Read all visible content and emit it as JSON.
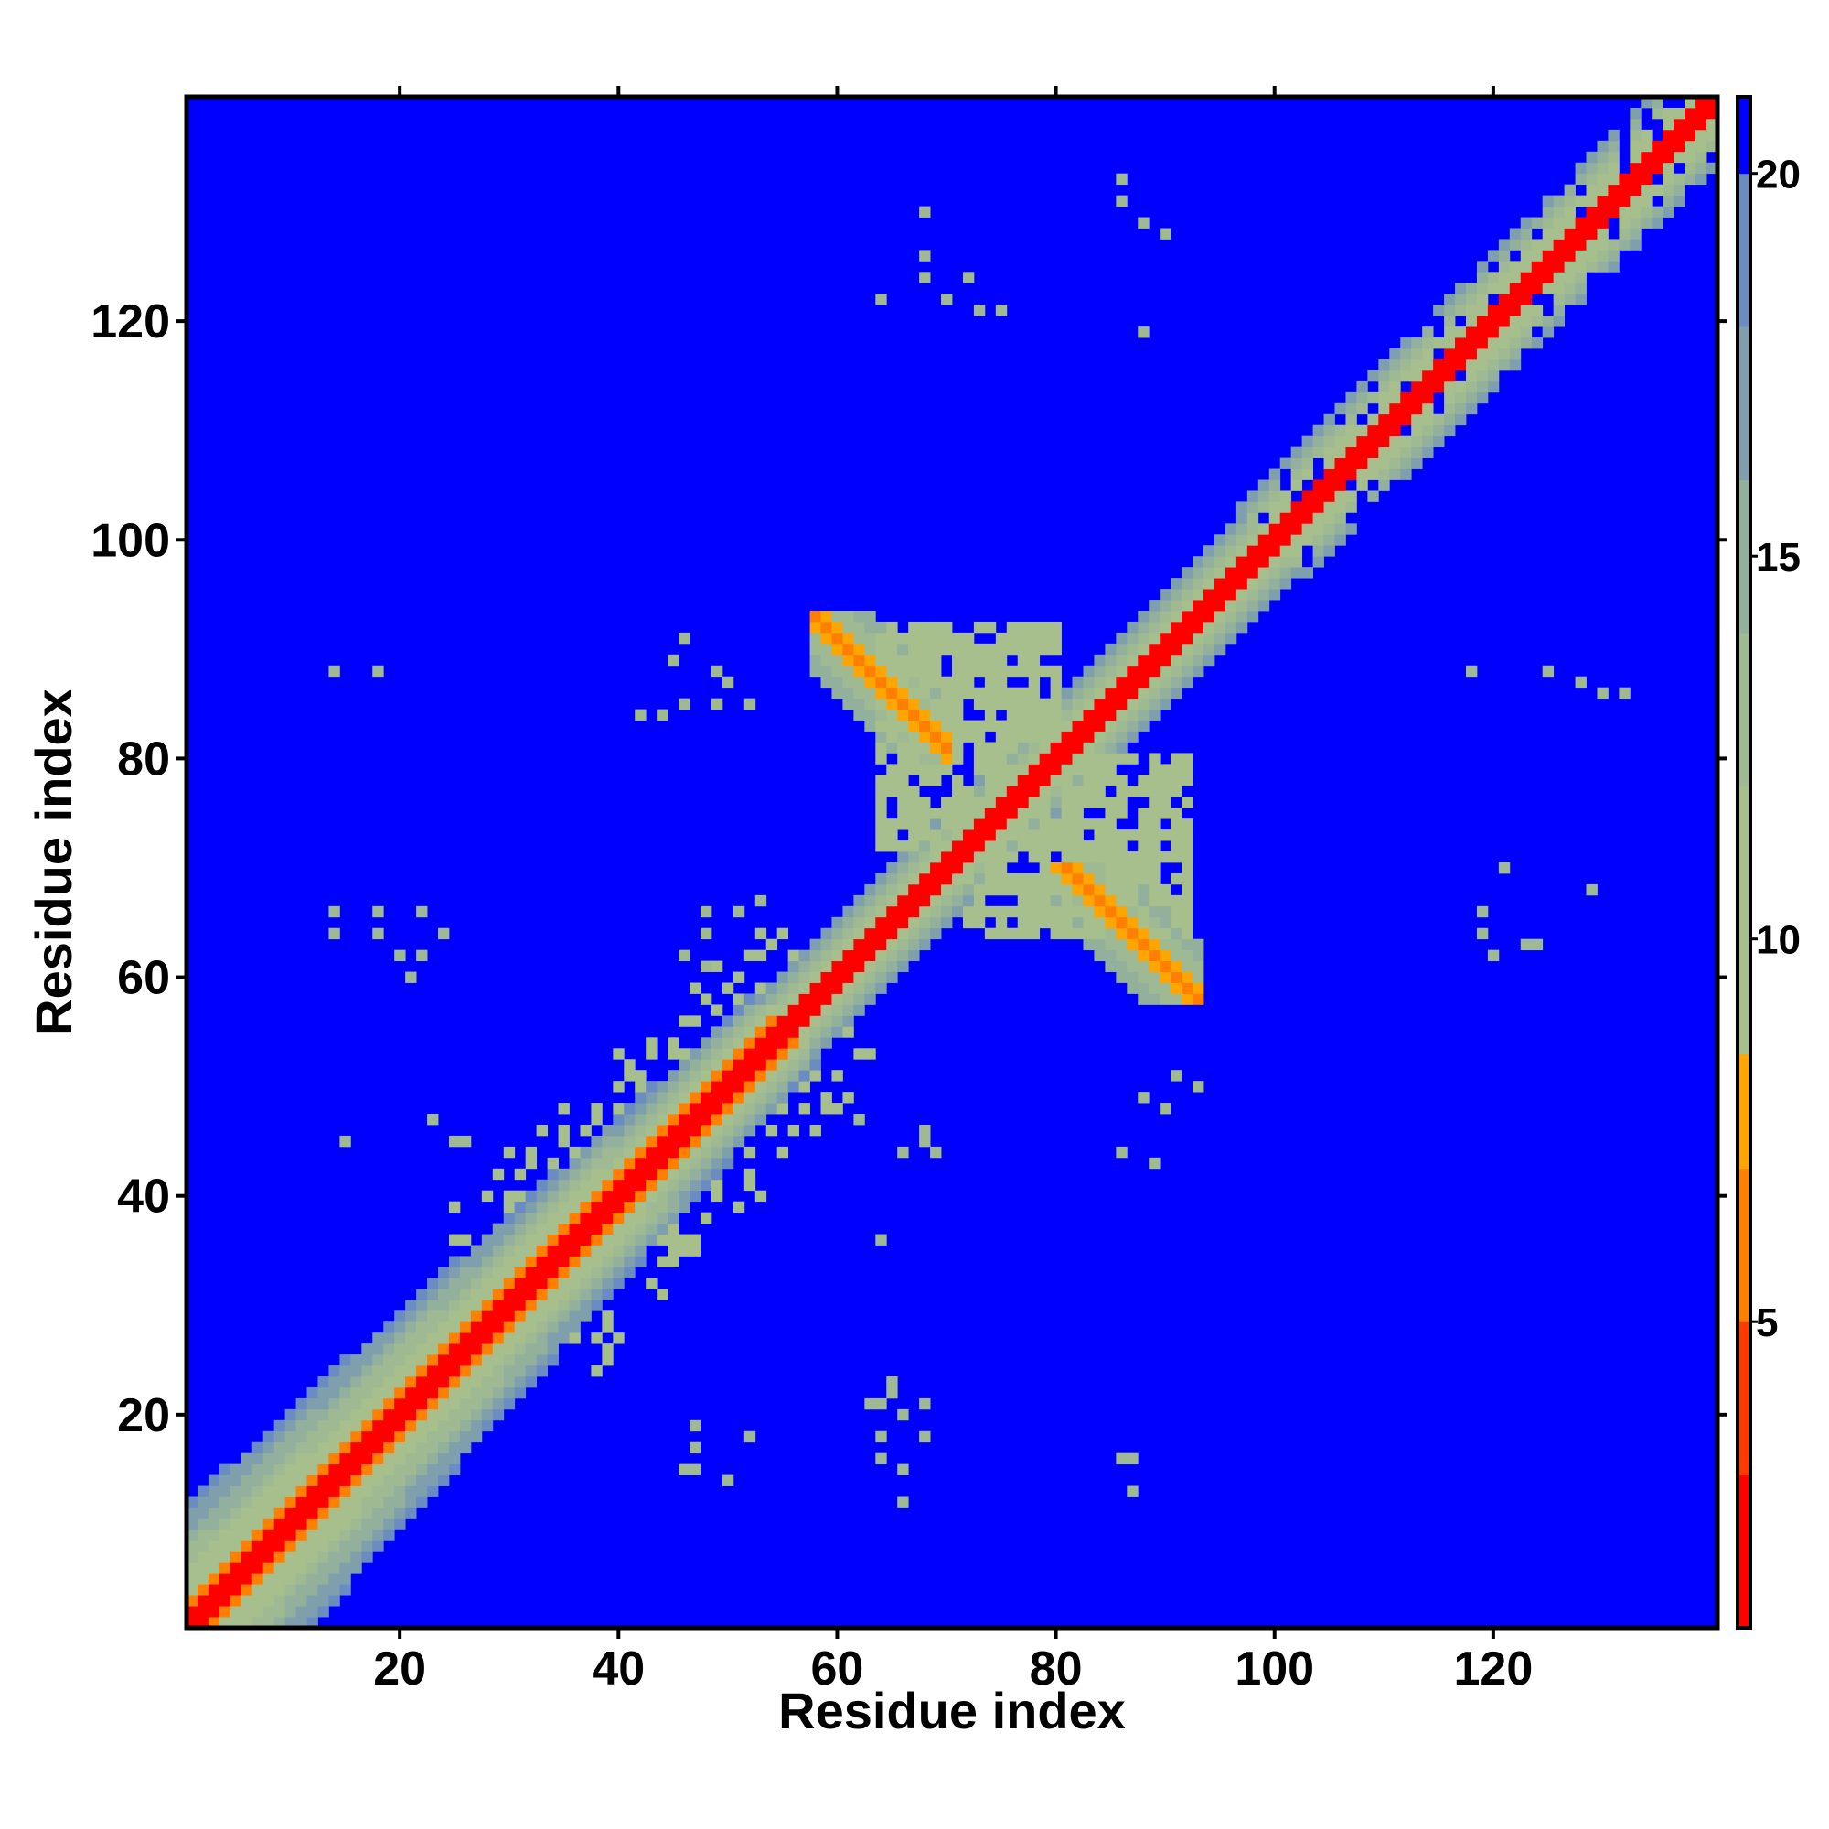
{
  "chart_data": {
    "type": "heatmap",
    "title": "",
    "xlabel": "Residue index",
    "ylabel": "Residue index",
    "xlim": [
      0.5,
      140.5
    ],
    "ylim": [
      0.5,
      140.5
    ],
    "x_ticks": [
      20,
      40,
      60,
      80,
      100,
      120
    ],
    "y_ticks": [
      20,
      40,
      60,
      80,
      100,
      120
    ],
    "x_tick_labels": [
      "20",
      "40",
      "60",
      "80",
      "100",
      "120"
    ],
    "y_tick_labels": [
      "20",
      "40",
      "60",
      "80",
      "100",
      "120"
    ],
    "colorbar": {
      "range": [
        1,
        21
      ],
      "ticks": [
        5,
        10,
        15,
        20
      ],
      "tick_labels": [
        "5",
        "10",
        "15",
        "20"
      ],
      "colors": [
        {
          "max": 3,
          "color": "#ff0000"
        },
        {
          "max": 5,
          "color": "#ff3a00"
        },
        {
          "max": 7,
          "color": "#ff7f00"
        },
        {
          "max": 8.5,
          "color": "#ffa500"
        },
        {
          "max": 12,
          "color": "#a7bf8d"
        },
        {
          "max": 14,
          "color": "#9fba93"
        },
        {
          "max": 16,
          "color": "#92b09c"
        },
        {
          "max": 18,
          "color": "#7f9fad"
        },
        {
          "max": 20,
          "color": "#6b8cc0"
        },
        {
          "max": 999,
          "color": "#0000ff"
        }
      ]
    },
    "grid": false,
    "legend": "colorbar-right",
    "description_of_pattern": {
      "diagonal_band": "distance ~1-3 on main diagonal, orange band in residues 5-55, green halo width ~8-12 at N-terminus narrowing to ~4 in middle",
      "antiparallel_contact": "orange anti-diagonal from (60,91) to (68,83) and mirror (83,68) to (91,60)",
      "cluster_center": "green blob around (70-88, 68-86)"
    },
    "sparse_contacts": [
      [
        14,
        88
      ],
      [
        18,
        88
      ],
      [
        14,
        66
      ],
      [
        14,
        64
      ],
      [
        18,
        66
      ],
      [
        18,
        64
      ],
      [
        20,
        62
      ],
      [
        22,
        66
      ],
      [
        22,
        62
      ],
      [
        24,
        64
      ],
      [
        21,
        60
      ],
      [
        15,
        45
      ],
      [
        23,
        47
      ],
      [
        25,
        45
      ],
      [
        26,
        45
      ],
      [
        47,
        19
      ],
      [
        47,
        17
      ],
      [
        47,
        15
      ],
      [
        50,
        14
      ],
      [
        52,
        18
      ],
      [
        46,
        15
      ],
      [
        64,
        21
      ],
      [
        66,
        20
      ],
      [
        64,
        18
      ],
      [
        68,
        21
      ],
      [
        68,
        18
      ],
      [
        64,
        16
      ],
      [
        66,
        15
      ],
      [
        66,
        12
      ],
      [
        46,
        62
      ],
      [
        48,
        61
      ],
      [
        53,
        67
      ],
      [
        51,
        66
      ],
      [
        48,
        66
      ],
      [
        48,
        64
      ],
      [
        62,
        47
      ],
      [
        64,
        36
      ],
      [
        68,
        46
      ],
      [
        66,
        44
      ],
      [
        68,
        45
      ],
      [
        69,
        44
      ],
      [
        63,
        21
      ],
      [
        65,
        23
      ],
      [
        65,
        22
      ],
      [
        68,
        130
      ],
      [
        72,
        124
      ],
      [
        68,
        124
      ],
      [
        73,
        121
      ],
      [
        75,
        121
      ],
      [
        70,
        122
      ],
      [
        64,
        122
      ],
      [
        68,
        126
      ],
      [
        86,
        133
      ],
      [
        86,
        131
      ],
      [
        88,
        129
      ],
      [
        90,
        128
      ],
      [
        88,
        119
      ],
      [
        42,
        84
      ],
      [
        44,
        84
      ],
      [
        46,
        85
      ],
      [
        45,
        89
      ],
      [
        46,
        91
      ],
      [
        49,
        85
      ],
      [
        50,
        87
      ],
      [
        52,
        85
      ],
      [
        49,
        88
      ],
      [
        87,
        16
      ],
      [
        87,
        13
      ],
      [
        86,
        16
      ],
      [
        89,
        43
      ],
      [
        86,
        44
      ],
      [
        93,
        50
      ],
      [
        91,
        51
      ],
      [
        88,
        49
      ],
      [
        90,
        48
      ],
      [
        118,
        88
      ],
      [
        125,
        88
      ],
      [
        128,
        87
      ],
      [
        130,
        86
      ],
      [
        132,
        86
      ],
      [
        119,
        64
      ],
      [
        119,
        66
      ],
      [
        121,
        70
      ],
      [
        123,
        63
      ],
      [
        124,
        63
      ],
      [
        129,
        68
      ],
      [
        120,
        62
      ]
    ]
  }
}
